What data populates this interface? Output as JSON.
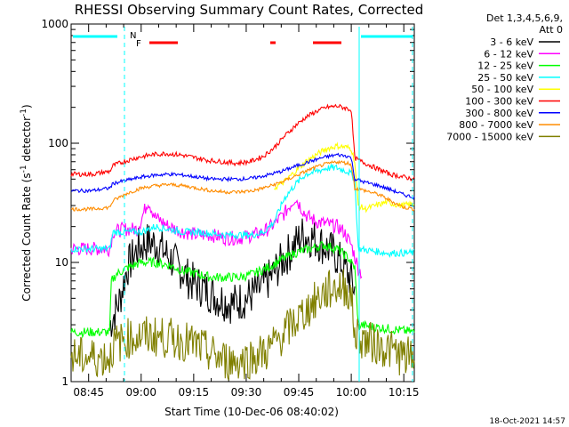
{
  "chart_data": {
    "type": "line",
    "title": "RHESSI Observing Summary Count Rates, Corrected",
    "xlabel": "Start Time (10-Dec-06 08:40:02)",
    "ylabel_main": "Corrected Count Rate (s",
    "ylabel_sup1": "-1",
    "ylabel_mid": " detector",
    "ylabel_sup2": "-1",
    "ylabel_end": ")",
    "ylog": true,
    "ylim": [
      1,
      1000
    ],
    "xlim_minutes": [
      0,
      98
    ],
    "xticks": [
      {
        "label": "08:45",
        "minutes": 5
      },
      {
        "label": "09:00",
        "minutes": 20
      },
      {
        "label": "09:15",
        "minutes": 35
      },
      {
        "label": "09:30",
        "minutes": 50
      },
      {
        "label": "09:45",
        "minutes": 65
      },
      {
        "label": "10:00",
        "minutes": 80
      },
      {
        "label": "10:15",
        "minutes": 95
      }
    ],
    "yticks": [
      {
        "label": "1",
        "value": 1
      },
      {
        "label": "10",
        "value": 10
      },
      {
        "label": "100",
        "value": 100
      },
      {
        "label": "1000",
        "value": 1000
      }
    ],
    "legend_header": [
      "Det 1,3,4,5,6,9,",
      "Att 0"
    ],
    "timestamp": "18-Oct-2021 14:57",
    "flags": [
      {
        "label": "N",
        "color": "#00ffff"
      },
      {
        "label": "F",
        "color": "#ff0000"
      }
    ],
    "series": [
      {
        "name": "3 - 6 keV",
        "color": "#000000",
        "points": [
          [
            11,
            3
          ],
          [
            12,
            3.5
          ],
          [
            14,
            5
          ],
          [
            16,
            9
          ],
          [
            19,
            13
          ],
          [
            22,
            15
          ],
          [
            25,
            14
          ],
          [
            28,
            11
          ],
          [
            31,
            9
          ],
          [
            34,
            7
          ],
          [
            38,
            6
          ],
          [
            42,
            5
          ],
          [
            46,
            4.5
          ],
          [
            50,
            5
          ],
          [
            54,
            6
          ],
          [
            57,
            7.5
          ],
          [
            60,
            10
          ],
          [
            63,
            13
          ],
          [
            66,
            17
          ],
          [
            69,
            16
          ],
          [
            72,
            14
          ],
          [
            75,
            12
          ],
          [
            77,
            10
          ],
          [
            79,
            8
          ],
          [
            80,
            7
          ],
          [
            81,
            6
          ]
        ]
      },
      {
        "name": "6 - 12 keV",
        "color": "#ff00ff",
        "points": [
          [
            0,
            13
          ],
          [
            6,
            13
          ],
          [
            11,
            13
          ],
          [
            12,
            18
          ],
          [
            15,
            19
          ],
          [
            19,
            19
          ],
          [
            22,
            33
          ],
          [
            24,
            24
          ],
          [
            28,
            20
          ],
          [
            32,
            18
          ],
          [
            36,
            17
          ],
          [
            40,
            17
          ],
          [
            44,
            16
          ],
          [
            48,
            16
          ],
          [
            52,
            17
          ],
          [
            55,
            18
          ],
          [
            58,
            21
          ],
          [
            61,
            26
          ],
          [
            64,
            35
          ],
          [
            67,
            25
          ],
          [
            70,
            22
          ],
          [
            73,
            21
          ],
          [
            76,
            20
          ],
          [
            78,
            18
          ],
          [
            80,
            14
          ],
          [
            82,
            9
          ],
          [
            83,
            8
          ]
        ]
      },
      {
        "name": "12 - 25 keV",
        "color": "#00ff00",
        "points": [
          [
            0,
            2.6
          ],
          [
            11,
            2.6
          ],
          [
            11.5,
            7
          ],
          [
            13,
            8
          ],
          [
            16,
            9
          ],
          [
            20,
            10
          ],
          [
            24,
            10
          ],
          [
            28,
            9.5
          ],
          [
            32,
            8.5
          ],
          [
            36,
            8
          ],
          [
            40,
            7.5
          ],
          [
            44,
            7.5
          ],
          [
            48,
            7.5
          ],
          [
            52,
            8
          ],
          [
            56,
            9
          ],
          [
            60,
            10.5
          ],
          [
            64,
            12
          ],
          [
            68,
            13
          ],
          [
            72,
            14
          ],
          [
            76,
            13
          ],
          [
            79,
            11
          ],
          [
            81,
            9
          ],
          [
            82,
            3
          ],
          [
            98,
            2.6
          ]
        ]
      },
      {
        "name": "25 - 50 keV",
        "color": "#00ffff",
        "points": [
          [
            0,
            13
          ],
          [
            11,
            13
          ],
          [
            12,
            18
          ],
          [
            20,
            18
          ],
          [
            24,
            20
          ],
          [
            28,
            19
          ],
          [
            32,
            18
          ],
          [
            36,
            18
          ],
          [
            40,
            17.5
          ],
          [
            44,
            17
          ],
          [
            48,
            17
          ],
          [
            52,
            17
          ],
          [
            55,
            18
          ],
          [
            58,
            22
          ],
          [
            61,
            35
          ],
          [
            64,
            45
          ],
          [
            67,
            55
          ],
          [
            70,
            58
          ],
          [
            73,
            62
          ],
          [
            76,
            62
          ],
          [
            79,
            58
          ],
          [
            80,
            55
          ],
          [
            81,
            50
          ],
          [
            82,
            13
          ],
          [
            90,
            12
          ],
          [
            98,
            12
          ]
        ]
      },
      {
        "name": "50 - 100 keV",
        "color": "#ffff00",
        "points": [
          [
            58,
            42
          ],
          [
            61,
            48
          ],
          [
            64,
            58
          ],
          [
            67,
            70
          ],
          [
            70,
            80
          ],
          [
            73,
            90
          ],
          [
            76,
            95
          ],
          [
            79,
            92
          ],
          [
            80,
            90
          ],
          [
            81,
            70
          ],
          [
            82,
            30
          ],
          [
            84,
            28
          ],
          [
            87,
            30
          ],
          [
            90,
            32
          ],
          [
            94,
            30
          ],
          [
            98,
            31
          ]
        ]
      },
      {
        "name": "100 - 300 keV",
        "color": "#ff0000",
        "points": [
          [
            0,
            55
          ],
          [
            6,
            55
          ],
          [
            11,
            58
          ],
          [
            12,
            65
          ],
          [
            15,
            70
          ],
          [
            19,
            76
          ],
          [
            23,
            80
          ],
          [
            27,
            82
          ],
          [
            31,
            80
          ],
          [
            35,
            76
          ],
          [
            39,
            72
          ],
          [
            43,
            70
          ],
          [
            47,
            68
          ],
          [
            51,
            70
          ],
          [
            55,
            78
          ],
          [
            58,
            92
          ],
          [
            61,
            115
          ],
          [
            64,
            140
          ],
          [
            67,
            165
          ],
          [
            70,
            185
          ],
          [
            73,
            200
          ],
          [
            76,
            205
          ],
          [
            79,
            195
          ],
          [
            80,
            190
          ],
          [
            81,
            75
          ],
          [
            83,
            70
          ],
          [
            87,
            62
          ],
          [
            91,
            55
          ],
          [
            95,
            52
          ],
          [
            98,
            50
          ]
        ]
      },
      {
        "name": "300 - 800 keV",
        "color": "#0000ff",
        "points": [
          [
            0,
            40
          ],
          [
            6,
            40
          ],
          [
            11,
            42
          ],
          [
            12,
            46
          ],
          [
            16,
            49
          ],
          [
            20,
            52
          ],
          [
            24,
            54
          ],
          [
            28,
            55
          ],
          [
            32,
            54
          ],
          [
            36,
            52
          ],
          [
            40,
            50
          ],
          [
            44,
            50
          ],
          [
            48,
            50
          ],
          [
            52,
            51
          ],
          [
            56,
            54
          ],
          [
            60,
            58
          ],
          [
            64,
            64
          ],
          [
            68,
            70
          ],
          [
            72,
            76
          ],
          [
            76,
            80
          ],
          [
            79,
            78
          ],
          [
            80,
            75
          ],
          [
            81,
            50
          ],
          [
            84,
            47
          ],
          [
            88,
            44
          ],
          [
            92,
            40
          ],
          [
            95,
            37
          ],
          [
            98,
            35
          ]
        ]
      },
      {
        "name": "800 - 7000 keV",
        "color": "#ff8c00",
        "points": [
          [
            0,
            28
          ],
          [
            6,
            28
          ],
          [
            11,
            29
          ],
          [
            12,
            33
          ],
          [
            16,
            38
          ],
          [
            20,
            42
          ],
          [
            24,
            44
          ],
          [
            28,
            45
          ],
          [
            32,
            44
          ],
          [
            36,
            42
          ],
          [
            40,
            40
          ],
          [
            44,
            39
          ],
          [
            48,
            39
          ],
          [
            52,
            40
          ],
          [
            56,
            43
          ],
          [
            60,
            47
          ],
          [
            64,
            53
          ],
          [
            68,
            60
          ],
          [
            72,
            66
          ],
          [
            76,
            70
          ],
          [
            79,
            68
          ],
          [
            80,
            66
          ],
          [
            81,
            42
          ],
          [
            84,
            40
          ],
          [
            88,
            37
          ],
          [
            92,
            32
          ],
          [
            95,
            29
          ],
          [
            98,
            28
          ]
        ]
      },
      {
        "name": "7000 - 15000 keV",
        "color": "#808000",
        "points": [
          [
            0,
            1.6
          ],
          [
            11,
            1.6
          ],
          [
            12,
            2
          ],
          [
            16,
            2.3
          ],
          [
            20,
            2.4
          ],
          [
            24,
            2.4
          ],
          [
            28,
            2.3
          ],
          [
            32,
            2.2
          ],
          [
            36,
            2
          ],
          [
            40,
            1.7
          ],
          [
            44,
            1.5
          ],
          [
            48,
            1.5
          ],
          [
            52,
            1.6
          ],
          [
            56,
            1.8
          ],
          [
            60,
            2.4
          ],
          [
            64,
            3.2
          ],
          [
            68,
            4.2
          ],
          [
            72,
            5.5
          ],
          [
            76,
            6.3
          ],
          [
            79,
            6
          ],
          [
            80,
            5
          ],
          [
            81,
            2.5
          ],
          [
            84,
            2.2
          ],
          [
            88,
            2
          ],
          [
            92,
            1.8
          ],
          [
            95,
            1.6
          ],
          [
            98,
            1.6
          ]
        ]
      }
    ]
  }
}
